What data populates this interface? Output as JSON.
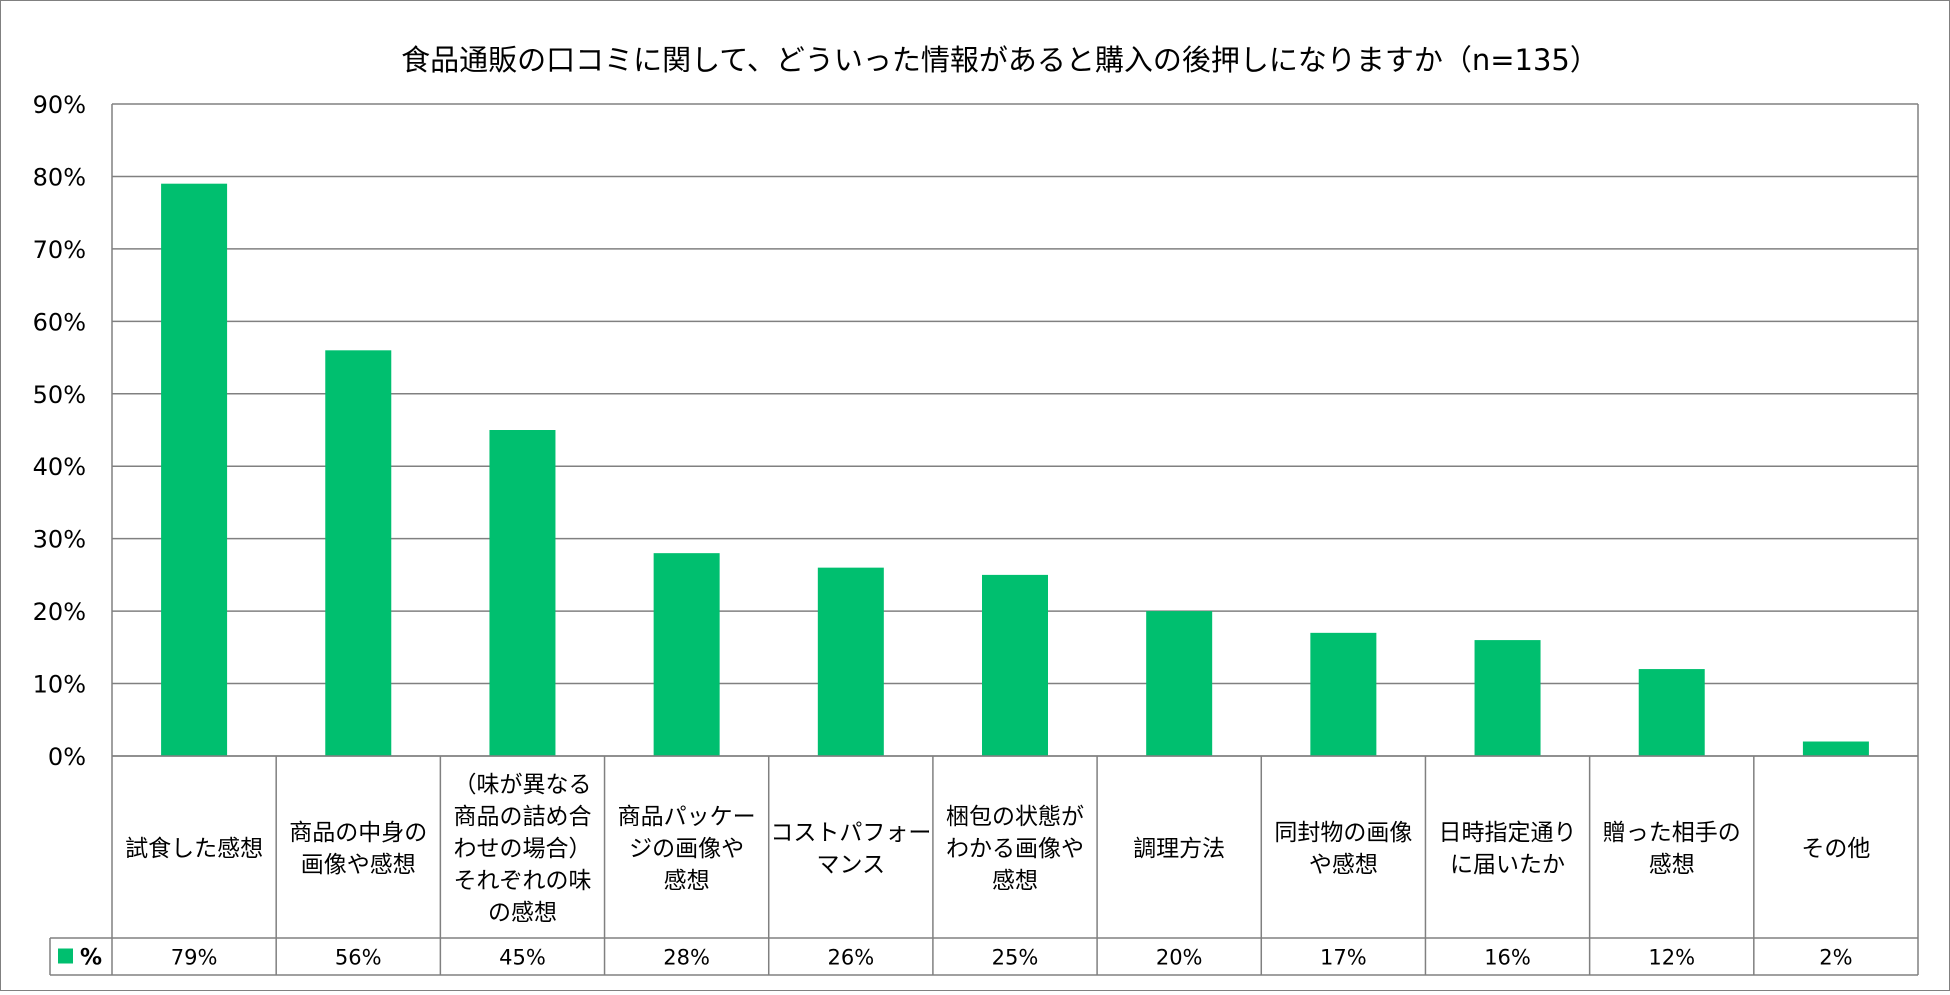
{
  "chart_data": {
    "type": "bar",
    "title": "食品通販の口コミに関して、どういった情報があると購入の後押しになりますか（n=135）",
    "series": [
      {
        "name": "%",
        "color": "#00BF6F",
        "values": [
          79,
          56,
          45,
          28,
          26,
          25,
          20,
          17,
          16,
          12,
          2
        ],
        "labels": [
          "79%",
          "56%",
          "45%",
          "28%",
          "26%",
          "25%",
          "20%",
          "17%",
          "16%",
          "12%",
          "2%"
        ]
      }
    ],
    "categories": [
      [
        "試食した感想"
      ],
      [
        "商品の中身の",
        "画像や感想"
      ],
      [
        "（味が異なる",
        "商品の詰め合",
        "わせの場合）",
        "それぞれの味",
        "の感想"
      ],
      [
        "商品パッケー",
        "ジの画像や",
        "感想"
      ],
      [
        "コストパフォー",
        "マンス"
      ],
      [
        "梱包の状態が",
        "わかる画像や",
        "感想"
      ],
      [
        "調理方法"
      ],
      [
        "同封物の画像",
        "や感想"
      ],
      [
        "日時指定通り",
        "に届いたか"
      ],
      [
        "贈った相手の",
        "感想"
      ],
      [
        "その他"
      ]
    ],
    "y_ticks": [
      "0%",
      "10%",
      "20%",
      "30%",
      "40%",
      "50%",
      "60%",
      "70%",
      "80%",
      "90%"
    ],
    "ylim": [
      0,
      90
    ],
    "ytick_step": 10,
    "grid": true,
    "legend": "data-table-left",
    "xlabel": "",
    "ylabel": ""
  }
}
